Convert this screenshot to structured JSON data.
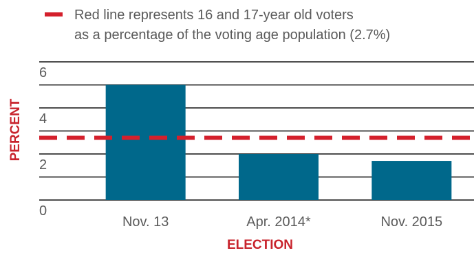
{
  "chart_data": {
    "type": "bar",
    "categories": [
      "Nov. 13",
      "Apr. 2014*",
      "Nov. 2015"
    ],
    "values": [
      5.0,
      2.0,
      1.7
    ],
    "xlabel": "ELECTION",
    "ylabel": "PERCENT",
    "ylim": [
      0,
      6
    ],
    "yticks": [
      0,
      2,
      4,
      6
    ],
    "grid": true,
    "legend_position": "top",
    "reference_line": {
      "value": 2.7,
      "label_lines": [
        "Red line represents 16 and 17-year old voters",
        "as a percentage of the voting age population (2.7%)"
      ],
      "style": "dashed"
    },
    "colors": {
      "bar": "#00688B",
      "reference": "#D4202C",
      "grid": "#4d4d4d",
      "text": "#5a5a5a",
      "axis_title": "#c8232c"
    }
  }
}
